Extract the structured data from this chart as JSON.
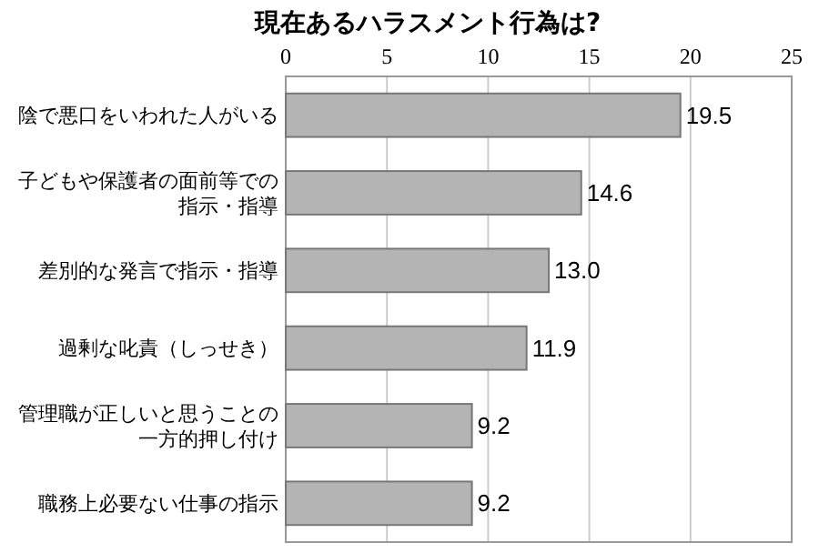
{
  "chart_data": {
    "type": "bar",
    "orientation": "horizontal",
    "title": "現在あるハラスメント行為は?",
    "categories": [
      "陰で悪口をいわれた人がいる",
      "子どもや保護者の面前等での指示・指導",
      "差別的な発言で指示・指導",
      "過剰な叱責（しっせき）",
      "管理職が正しいと思うことの一方的押し付け",
      "職務上必要ない仕事の指示"
    ],
    "values": [
      19.5,
      14.6,
      13.0,
      11.9,
      9.2,
      9.2
    ],
    "value_labels": [
      "19.5",
      "14.6",
      "13.0",
      "11.9",
      "9.2",
      "9.2"
    ],
    "color": "#b4b4b4",
    "xlim": [
      0,
      25
    ],
    "xticks": [
      0,
      5,
      10,
      15,
      20,
      25
    ],
    "grid": "x"
  }
}
